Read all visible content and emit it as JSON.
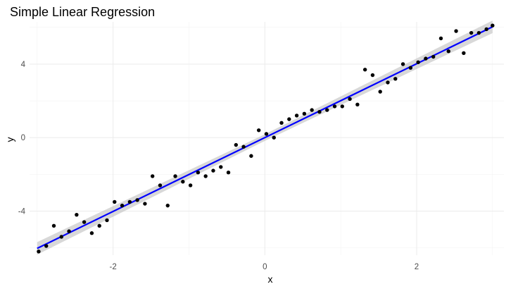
{
  "chart_data": {
    "type": "scatter",
    "title": "Simple Linear Regression",
    "xlabel": "x",
    "ylabel": "y",
    "xlim": [
      -3.1,
      3.15
    ],
    "ylim": [
      -6.4,
      6.3
    ],
    "x_ticks": [
      -2,
      0,
      2
    ],
    "y_ticks": [
      -4,
      0,
      4
    ],
    "x_tick_labels": [
      "-2",
      "0",
      "2"
    ],
    "y_tick_labels": [
      "-4",
      "0",
      "4"
    ],
    "grid": true,
    "legend": "none",
    "point_color": "#000000",
    "line_color": "#0000ff",
    "band_color": "#bebebe",
    "points": [
      {
        "x": -2.98,
        "y": -6.2
      },
      {
        "x": -2.88,
        "y": -5.9
      },
      {
        "x": -2.78,
        "y": -4.8
      },
      {
        "x": -2.68,
        "y": -5.4
      },
      {
        "x": -2.58,
        "y": -5.1
      },
      {
        "x": -2.48,
        "y": -4.2
      },
      {
        "x": -2.38,
        "y": -4.6
      },
      {
        "x": -2.28,
        "y": -5.2
      },
      {
        "x": -2.18,
        "y": -4.8
      },
      {
        "x": -2.08,
        "y": -4.5
      },
      {
        "x": -1.98,
        "y": -3.5
      },
      {
        "x": -1.88,
        "y": -3.7
      },
      {
        "x": -1.78,
        "y": -3.5
      },
      {
        "x": -1.68,
        "y": -3.4
      },
      {
        "x": -1.58,
        "y": -3.6
      },
      {
        "x": -1.48,
        "y": -2.1
      },
      {
        "x": -1.38,
        "y": -2.6
      },
      {
        "x": -1.28,
        "y": -3.7
      },
      {
        "x": -1.18,
        "y": -2.1
      },
      {
        "x": -1.08,
        "y": -2.4
      },
      {
        "x": -0.98,
        "y": -2.6
      },
      {
        "x": -0.88,
        "y": -1.9
      },
      {
        "x": -0.78,
        "y": -2.1
      },
      {
        "x": -0.68,
        "y": -1.8
      },
      {
        "x": -0.58,
        "y": -1.6
      },
      {
        "x": -0.48,
        "y": -1.9
      },
      {
        "x": -0.38,
        "y": -0.4
      },
      {
        "x": -0.28,
        "y": -0.5
      },
      {
        "x": -0.18,
        "y": -1.0
      },
      {
        "x": -0.08,
        "y": 0.4
      },
      {
        "x": 0.02,
        "y": 0.2
      },
      {
        "x": 0.12,
        "y": 0.0
      },
      {
        "x": 0.22,
        "y": 0.8
      },
      {
        "x": 0.32,
        "y": 1.0
      },
      {
        "x": 0.42,
        "y": 1.2
      },
      {
        "x": 0.52,
        "y": 1.3
      },
      {
        "x": 0.62,
        "y": 1.5
      },
      {
        "x": 0.72,
        "y": 1.4
      },
      {
        "x": 0.82,
        "y": 1.5
      },
      {
        "x": 0.92,
        "y": 1.7
      },
      {
        "x": 1.02,
        "y": 1.7
      },
      {
        "x": 1.12,
        "y": 2.1
      },
      {
        "x": 1.22,
        "y": 1.8
      },
      {
        "x": 1.32,
        "y": 3.7
      },
      {
        "x": 1.42,
        "y": 3.4
      },
      {
        "x": 1.52,
        "y": 2.5
      },
      {
        "x": 1.62,
        "y": 3.0
      },
      {
        "x": 1.72,
        "y": 3.2
      },
      {
        "x": 1.82,
        "y": 4.0
      },
      {
        "x": 1.92,
        "y": 3.8
      },
      {
        "x": 2.02,
        "y": 4.1
      },
      {
        "x": 2.12,
        "y": 4.3
      },
      {
        "x": 2.22,
        "y": 4.4
      },
      {
        "x": 2.32,
        "y": 5.4
      },
      {
        "x": 2.42,
        "y": 4.7
      },
      {
        "x": 2.52,
        "y": 5.8
      },
      {
        "x": 2.62,
        "y": 4.6
      },
      {
        "x": 2.72,
        "y": 5.7
      },
      {
        "x": 2.82,
        "y": 5.7
      },
      {
        "x": 2.92,
        "y": 5.9
      },
      {
        "x": 3.0,
        "y": 6.1
      }
    ],
    "fit": {
      "intercept": 0.0,
      "slope": 2.01,
      "x_range": [
        -3.0,
        3.0
      ],
      "se_band": 0.18
    }
  }
}
